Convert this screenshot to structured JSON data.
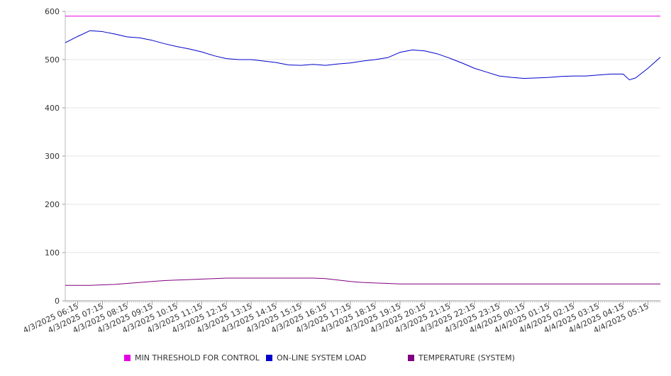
{
  "chart_data": {
    "type": "line",
    "title": "",
    "xlabel": "",
    "ylabel": "",
    "ylim": [
      0,
      600
    ],
    "y_ticks": [
      "0",
      "100",
      "200",
      "300",
      "400",
      "500",
      "600"
    ],
    "x_tick_labels": [
      "4/3/2025 06:15",
      "4/3/2025 07:15",
      "4/3/2025 08:15",
      "4/3/2025 09:15",
      "4/3/2025 10:15",
      "4/3/2025 11:15",
      "4/3/2025 12:15",
      "4/3/2025 13:15",
      "4/3/2025 14:15",
      "4/3/2025 15:15",
      "4/3/2025 16:15",
      "4/3/2025 17:15",
      "4/3/2025 18:15",
      "4/3/2025 19:15",
      "4/3/2025 20:15",
      "4/3/2025 21:15",
      "4/3/2025 22:15",
      "4/3/2025 23:15",
      "4/4/2025 00:15",
      "4/4/2025 01:15",
      "4/4/2025 02:15",
      "4/4/2025 03:15",
      "4/4/2025 04:15",
      "4/4/2025 05:15"
    ],
    "x": [
      "4/3/2025 05:45",
      "4/3/2025 06:15",
      "4/3/2025 06:45",
      "4/3/2025 07:15",
      "4/3/2025 07:45",
      "4/3/2025 08:15",
      "4/3/2025 08:45",
      "4/3/2025 09:15",
      "4/3/2025 09:45",
      "4/3/2025 10:15",
      "4/3/2025 10:45",
      "4/3/2025 11:15",
      "4/3/2025 11:45",
      "4/3/2025 12:15",
      "4/3/2025 12:45",
      "4/3/2025 13:15",
      "4/3/2025 13:45",
      "4/3/2025 14:15",
      "4/3/2025 14:45",
      "4/3/2025 15:15",
      "4/3/2025 15:45",
      "4/3/2025 16:15",
      "4/3/2025 16:45",
      "4/3/2025 17:15",
      "4/3/2025 17:45",
      "4/3/2025 18:15",
      "4/3/2025 18:45",
      "4/3/2025 19:15",
      "4/3/2025 19:45",
      "4/3/2025 20:15",
      "4/3/2025 20:45",
      "4/3/2025 21:15",
      "4/3/2025 21:45",
      "4/3/2025 22:15",
      "4/3/2025 22:45",
      "4/3/2025 23:15",
      "4/3/2025 23:45",
      "4/4/2025 00:15",
      "4/4/2025 00:45",
      "4/4/2025 01:15",
      "4/4/2025 01:45",
      "4/4/2025 02:15",
      "4/4/2025 02:45",
      "4/4/2025 03:15",
      "4/4/2025 03:45",
      "4/4/2025 04:15",
      "4/4/2025 04:30",
      "4/4/2025 04:45",
      "4/4/2025 05:15",
      "4/4/2025 05:45"
    ],
    "series": [
      {
        "name": "MIN THRESHOLD FOR CONTROL",
        "color": "#e600e6",
        "values": [
          590,
          590,
          590,
          590,
          590,
          590,
          590,
          590,
          590,
          590,
          590,
          590,
          590,
          590,
          590,
          590,
          590,
          590,
          590,
          590,
          590,
          590,
          590,
          590,
          590,
          590,
          590,
          590,
          590,
          590,
          590,
          590,
          590,
          590,
          590,
          590,
          590,
          590,
          590,
          590,
          590,
          590,
          590,
          590,
          590,
          590,
          590,
          590,
          590,
          590
        ]
      },
      {
        "name": "ON-LINE SYSTEM LOAD",
        "color": "#0000cc",
        "values": [
          535,
          548,
          560,
          558,
          553,
          547,
          545,
          540,
          533,
          527,
          522,
          516,
          508,
          502,
          500,
          500,
          497,
          494,
          489,
          488,
          490,
          488,
          491,
          493,
          497,
          500,
          504,
          515,
          520,
          518,
          512,
          503,
          493,
          482,
          474,
          466,
          463,
          461,
          462,
          463,
          465,
          466,
          466,
          468,
          470,
          470,
          458,
          462,
          482,
          505
        ]
      },
      {
        "name": "TEMPERATURE (SYSTEM)",
        "color": "#800080",
        "values": [
          32,
          32,
          32,
          33,
          34,
          36,
          38,
          40,
          42,
          43,
          44,
          45,
          46,
          47,
          47,
          47,
          47,
          47,
          47,
          47,
          47,
          46,
          43,
          40,
          38,
          37,
          36,
          35,
          35,
          35,
          35,
          35,
          35,
          35,
          35,
          35,
          35,
          35,
          35,
          35,
          35,
          35,
          35,
          35,
          35,
          35,
          35,
          35,
          35,
          35
        ]
      }
    ],
    "grid": true,
    "legend_position": "bottom"
  }
}
